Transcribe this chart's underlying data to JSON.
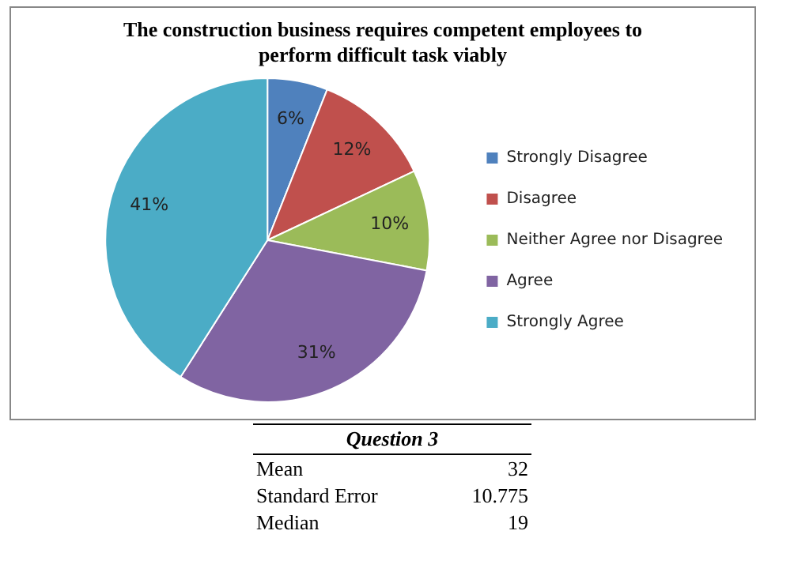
{
  "chart_data": {
    "type": "pie",
    "title": "The construction business requires competent employees to perform difficult task viably",
    "categories": [
      "Strongly Disagree",
      "Disagree",
      "Neither Agree nor Disagree",
      "Agree",
      "Strongly Agree"
    ],
    "values": [
      6,
      12,
      10,
      31,
      41
    ],
    "value_labels": [
      "6%",
      "12%",
      "10%",
      "31%",
      "41%"
    ],
    "colors": [
      "#4f81bd",
      "#c0504d",
      "#9bbb59",
      "#8064a2",
      "#4bacc6"
    ],
    "legend": "right",
    "annotations": [
      "Question 3",
      "Mean",
      "32",
      "Standard Error",
      "10.775",
      "Median",
      "19"
    ]
  }
}
